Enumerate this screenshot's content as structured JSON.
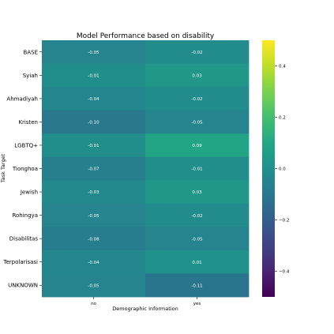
{
  "chart_data": {
    "type": "heatmap",
    "title": "Model Performance based on disability",
    "xlabel": "Demographic Information",
    "ylabel": "Task Target",
    "x_categories": [
      "no",
      "yes"
    ],
    "y_categories": [
      "BASE",
      "Syiah",
      "Ahmadiyah",
      "Kristen",
      "LGBTQ+",
      "Tionghoa",
      "Jewish",
      "Rohingya",
      "Disabilitas",
      "Terpolarisasi",
      "UNKNOWN"
    ],
    "values": [
      [
        -0.05,
        -0.02
      ],
      [
        -0.01,
        0.03
      ],
      [
        -0.04,
        -0.02
      ],
      [
        -0.1,
        -0.05
      ],
      [
        -0.01,
        0.09
      ],
      [
        -0.07,
        -0.01
      ],
      [
        -0.03,
        0.03
      ],
      [
        -0.05,
        -0.02
      ],
      [
        -0.08,
        -0.05
      ],
      [
        -0.04,
        0.01
      ],
      [
        -0.05,
        -0.11
      ]
    ],
    "value_labels": [
      [
        "-0.05",
        "-0.02"
      ],
      [
        "-0.01",
        "0.03"
      ],
      [
        "-0.04",
        "-0.02"
      ],
      [
        "-0.10",
        "-0.05"
      ],
      [
        "-0.01",
        "0.09"
      ],
      [
        "-0.07",
        "-0.01"
      ],
      [
        "-0.03",
        "0.03"
      ],
      [
        "-0.05",
        "-0.02"
      ],
      [
        "-0.08",
        "-0.05"
      ],
      [
        "-0.04",
        "0.01"
      ],
      [
        "-0.05",
        "-0.11"
      ]
    ],
    "colormap": "viridis",
    "vmin": -0.5,
    "vmax": 0.5,
    "colorbar_ticks": [
      0.4,
      0.2,
      0.0,
      -0.2,
      -0.4
    ],
    "colorbar_tick_labels": [
      "0.4",
      "0.2",
      "0.0",
      "−0.2",
      "−0.4"
    ],
    "annotation_color": "#ffffff",
    "legend": "colorbar-right",
    "grid": false
  }
}
